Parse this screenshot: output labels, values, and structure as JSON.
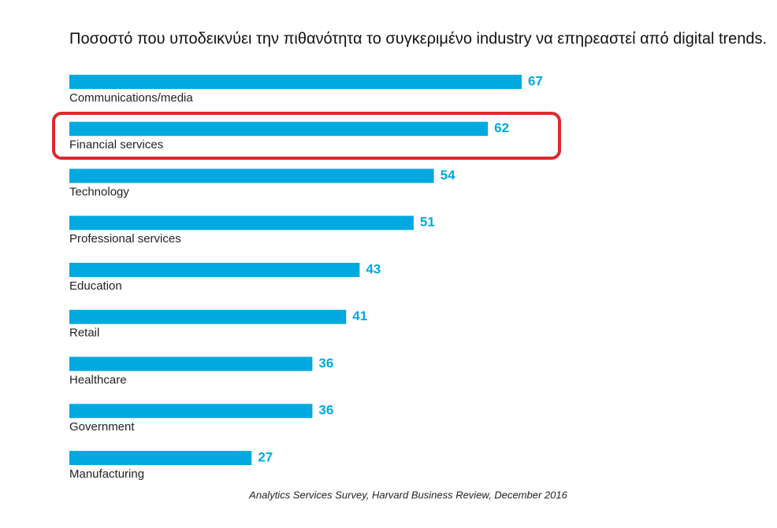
{
  "chart_data": {
    "type": "bar",
    "orientation": "horizontal",
    "title": "Ποσοστό που υποδεικνύει την πιθανότητα το συγκεριμένο industry να επηρεαστεί από digital trends.",
    "categories": [
      "Communications/media",
      "Financial services",
      "Technology",
      "Professional services",
      "Education",
      "Retail",
      "Healthcare",
      "Government",
      "Manufacturing"
    ],
    "values": [
      67,
      62,
      54,
      51,
      43,
      41,
      36,
      36,
      27
    ],
    "color": "#00a9e0",
    "source": "Analytics Services Survey, Harvard Business Review, December 2016"
  }
}
